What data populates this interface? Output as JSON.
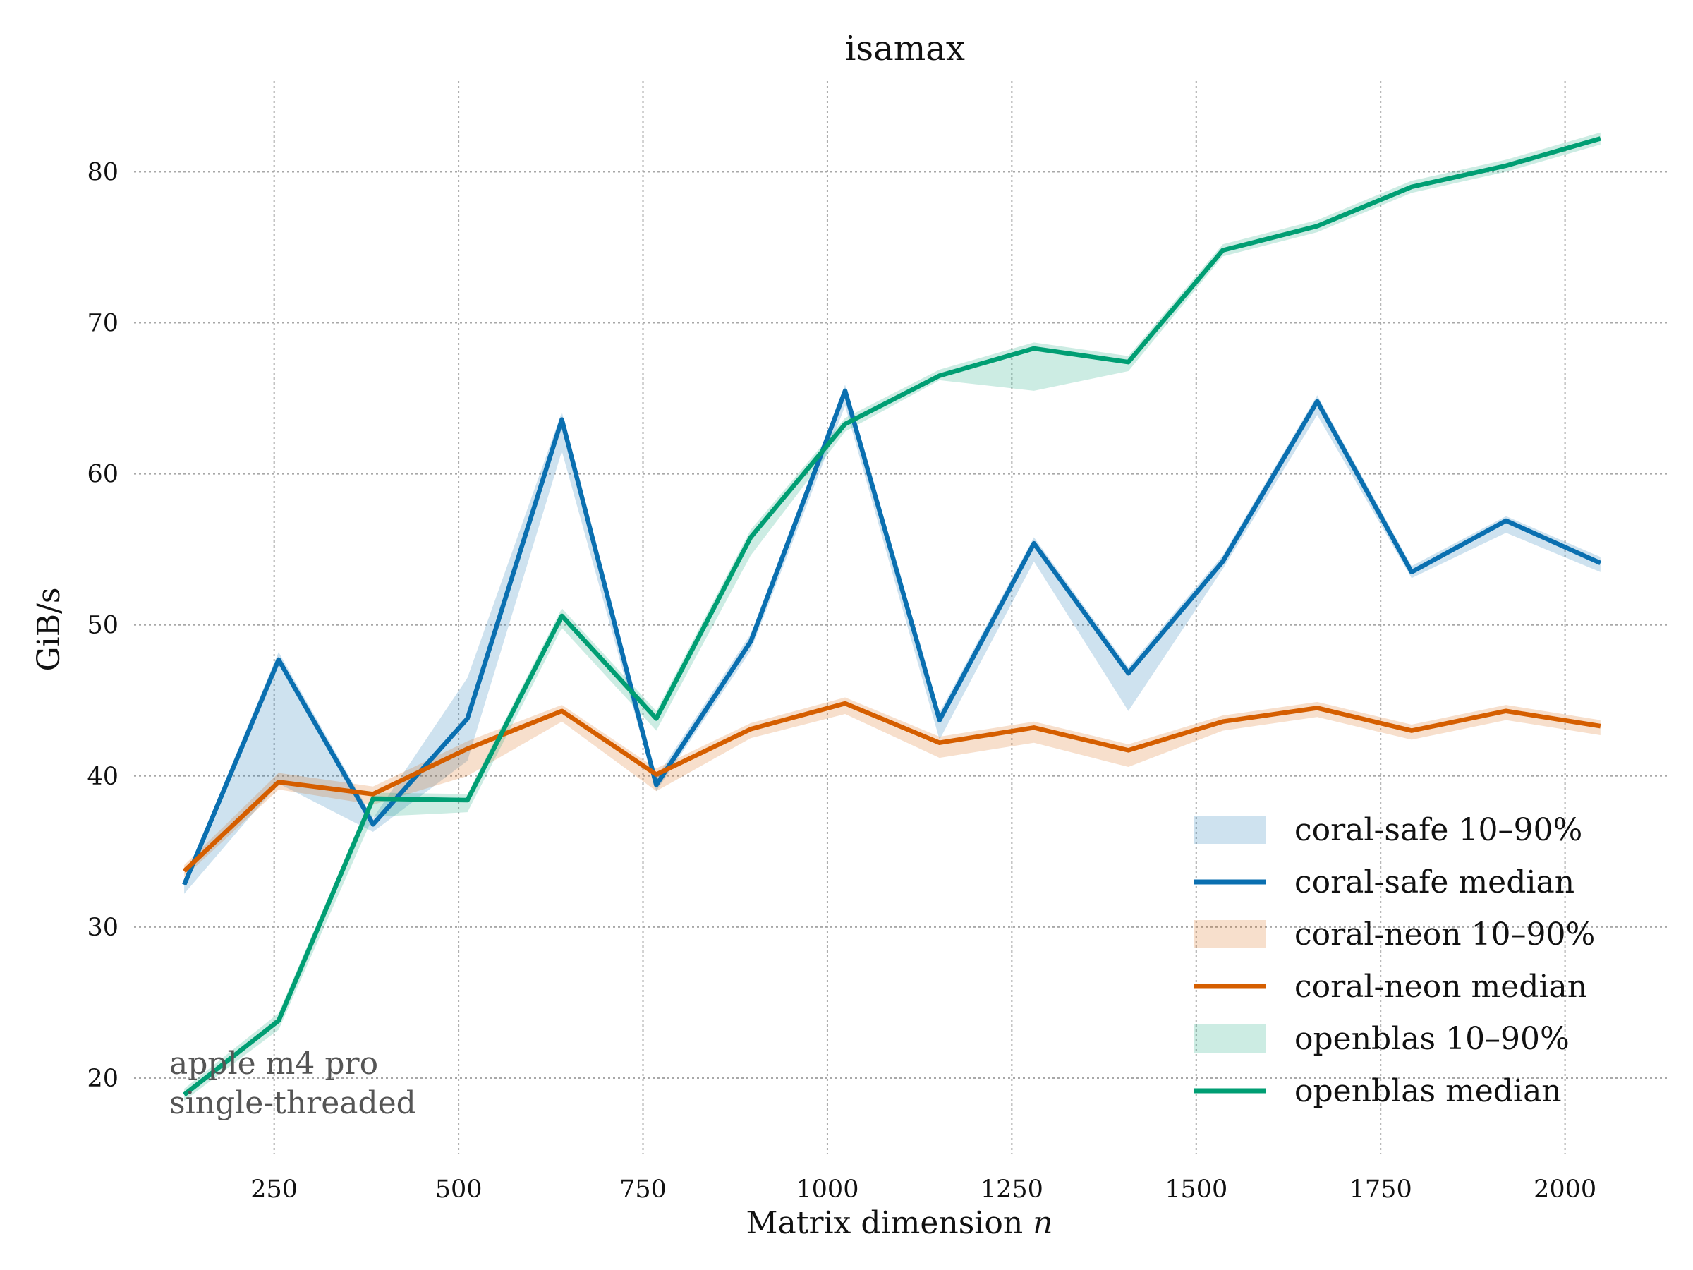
{
  "chart_data": {
    "type": "line",
    "title": "isamax",
    "xlabel": "Matrix dimension ",
    "xlabel_var": "n",
    "ylabel": "GiB/s",
    "xlim": [
      60,
      2140
    ],
    "ylim": [
      15,
      86
    ],
    "x_ticks": [
      250,
      500,
      750,
      1000,
      1250,
      1500,
      1750,
      2000
    ],
    "y_ticks": [
      20,
      30,
      40,
      50,
      60,
      70,
      80
    ],
    "grid": true,
    "legend_position": "bottom-right",
    "x": [
      128,
      256,
      384,
      512,
      640,
      768,
      896,
      1024,
      1152,
      1280,
      1408,
      1536,
      1664,
      1792,
      1920,
      2048
    ],
    "series": [
      {
        "name": "coral-safe",
        "color": "#0a6fb0",
        "band_label": "coral-safe 10–90%",
        "median_label": "coral-safe median",
        "median": [
          32.8,
          47.7,
          36.8,
          43.8,
          63.6,
          39.4,
          48.9,
          65.5,
          43.7,
          55.4,
          46.8,
          54.2,
          64.8,
          53.5,
          56.9,
          54.1
        ],
        "p10": [
          32.2,
          39.5,
          36.3,
          41.0,
          61.5,
          39.0,
          48.3,
          64.5,
          42.4,
          54.2,
          44.3,
          53.7,
          63.9,
          53.1,
          56.1,
          53.5
        ],
        "p90": [
          33.2,
          48.2,
          37.2,
          46.5,
          64.1,
          39.9,
          49.4,
          65.9,
          44.2,
          55.8,
          47.2,
          54.6,
          65.2,
          53.9,
          57.2,
          54.5
        ]
      },
      {
        "name": "coral-neon",
        "color": "#d55e00",
        "band_label": "coral-neon 10–90%",
        "median_label": "coral-neon median",
        "median": [
          33.7,
          39.6,
          38.8,
          41.8,
          44.3,
          40.1,
          43.1,
          44.8,
          42.2,
          43.2,
          41.7,
          43.6,
          44.5,
          43.0,
          44.3,
          43.3
        ],
        "p10": [
          33.3,
          39.1,
          38.1,
          40.0,
          43.6,
          39.0,
          42.5,
          44.1,
          41.2,
          42.2,
          40.6,
          43.0,
          43.9,
          42.4,
          43.7,
          42.7
        ],
        "p90": [
          34.1,
          40.2,
          39.3,
          42.3,
          44.7,
          40.5,
          43.5,
          45.2,
          42.6,
          43.6,
          42.1,
          44.0,
          44.9,
          43.4,
          44.7,
          43.7
        ]
      },
      {
        "name": "openblas",
        "color": "#009e73",
        "band_label": "openblas 10–90%",
        "median_label": "openblas median",
        "median": [
          18.9,
          23.8,
          38.5,
          38.4,
          50.6,
          43.8,
          55.8,
          63.3,
          66.5,
          68.3,
          67.4,
          74.8,
          76.4,
          79.0,
          80.4,
          82.2
        ],
        "p10": [
          18.5,
          23.2,
          37.3,
          37.6,
          49.8,
          43.0,
          54.6,
          62.8,
          66.2,
          65.5,
          66.8,
          74.4,
          76.0,
          78.6,
          80.0,
          81.8
        ],
        "p90": [
          19.3,
          24.3,
          38.9,
          38.8,
          51.1,
          44.3,
          56.3,
          63.7,
          66.9,
          68.7,
          67.8,
          75.2,
          76.8,
          79.4,
          80.8,
          82.6
        ]
      }
    ]
  },
  "annotation": {
    "line1": "apple m4 pro",
    "line2": "single-threaded"
  }
}
